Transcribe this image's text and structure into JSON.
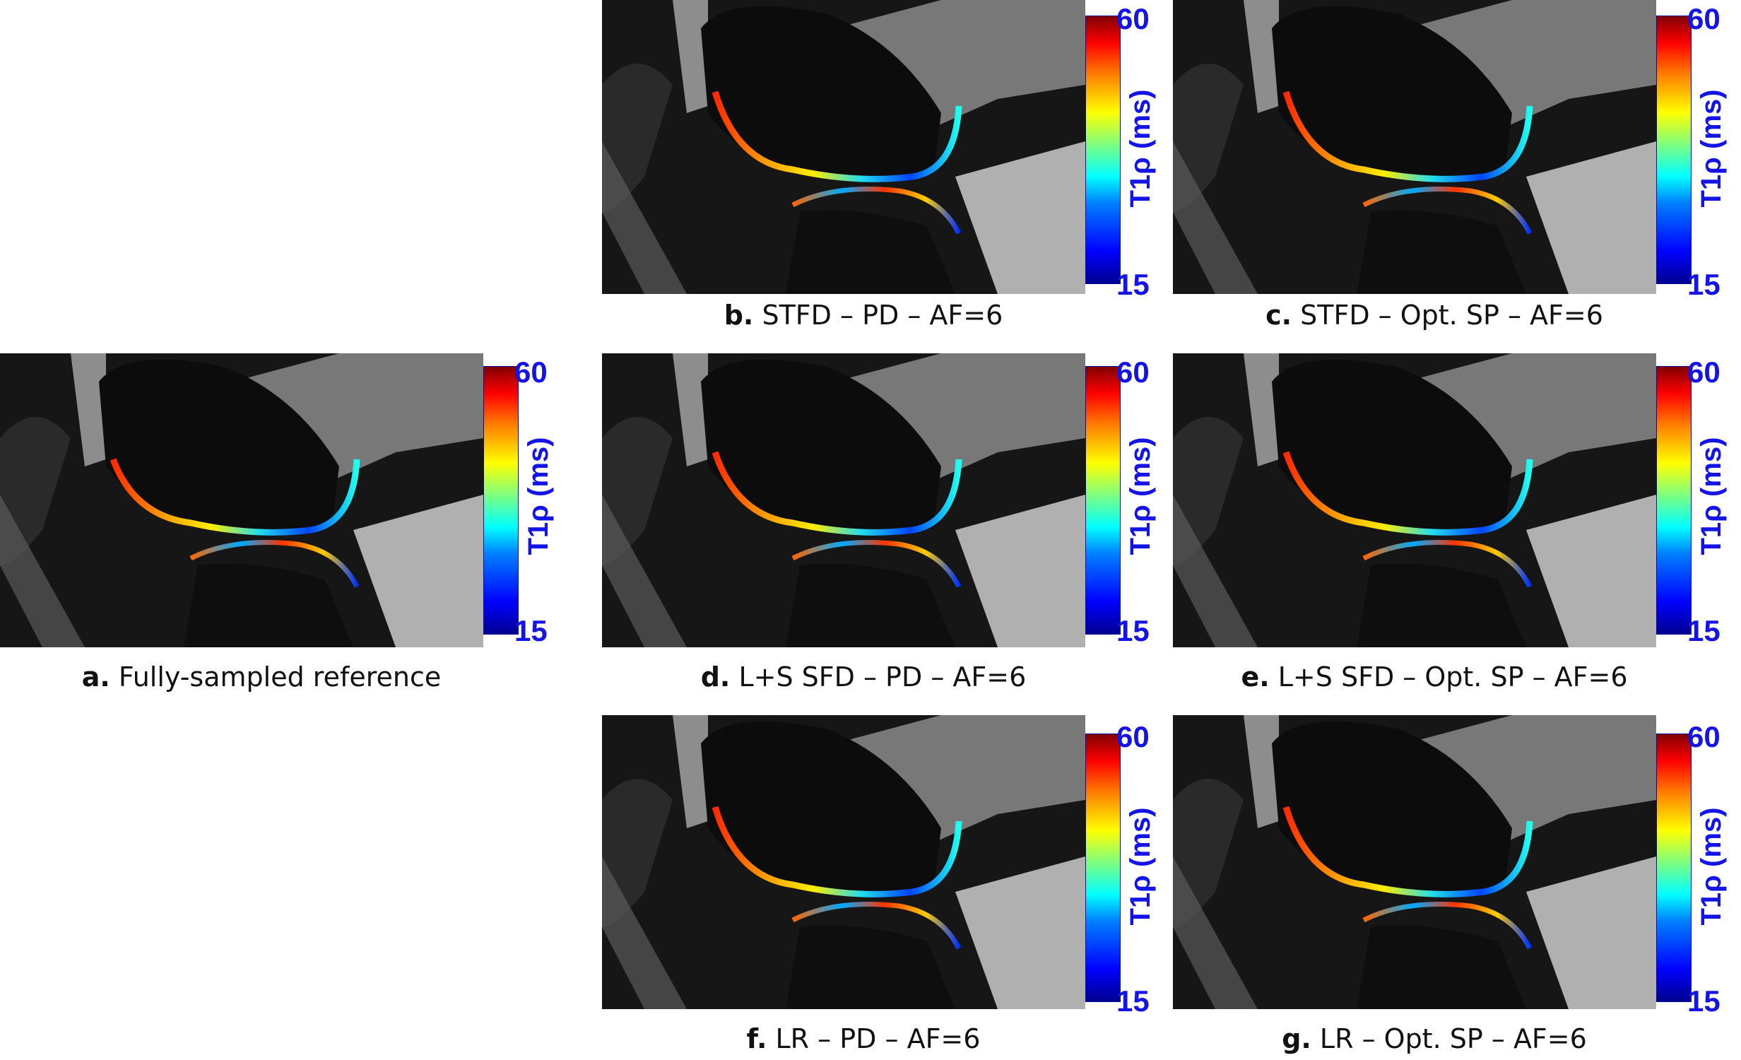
{
  "figure": {
    "colorbar": {
      "max_label": "60",
      "min_label": "15",
      "title": "T1ρ (ms)",
      "colormap": [
        "#00008f",
        "#0000ff",
        "#0080ff",
        "#00ffff",
        "#7fff7f",
        "#ffff00",
        "#ff8000",
        "#ff0000",
        "#800000"
      ]
    },
    "panels": [
      {
        "id": "a",
        "letter": "a.",
        "text": "Fully-sampled reference"
      },
      {
        "id": "b",
        "letter": "b.",
        "text": "STFD – PD – AF=6"
      },
      {
        "id": "c",
        "letter": "c.",
        "text": "STFD – Opt. SP – AF=6"
      },
      {
        "id": "d",
        "letter": "d.",
        "text": "L+S SFD – PD – AF=6"
      },
      {
        "id": "e",
        "letter": "e.",
        "text": "L+S SFD – Opt. SP – AF=6"
      },
      {
        "id": "f",
        "letter": "f.",
        "text": "LR – PD – AF=6"
      },
      {
        "id": "g",
        "letter": "g.",
        "text": "LR – Opt. SP – AF=6"
      }
    ]
  }
}
